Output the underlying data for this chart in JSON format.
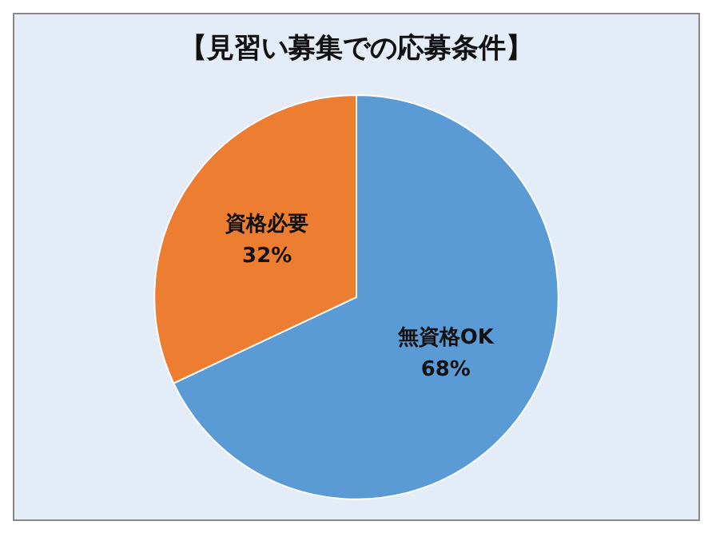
{
  "chart_data": {
    "type": "pie",
    "title": "【見習い募集での応募条件】",
    "categories": [
      "無資格OK",
      "資格必要"
    ],
    "values": [
      68,
      32
    ],
    "colors": [
      "#5b9bd5",
      "#ed7d31"
    ],
    "value_labels": [
      "68%",
      "32%"
    ],
    "legend": false
  }
}
